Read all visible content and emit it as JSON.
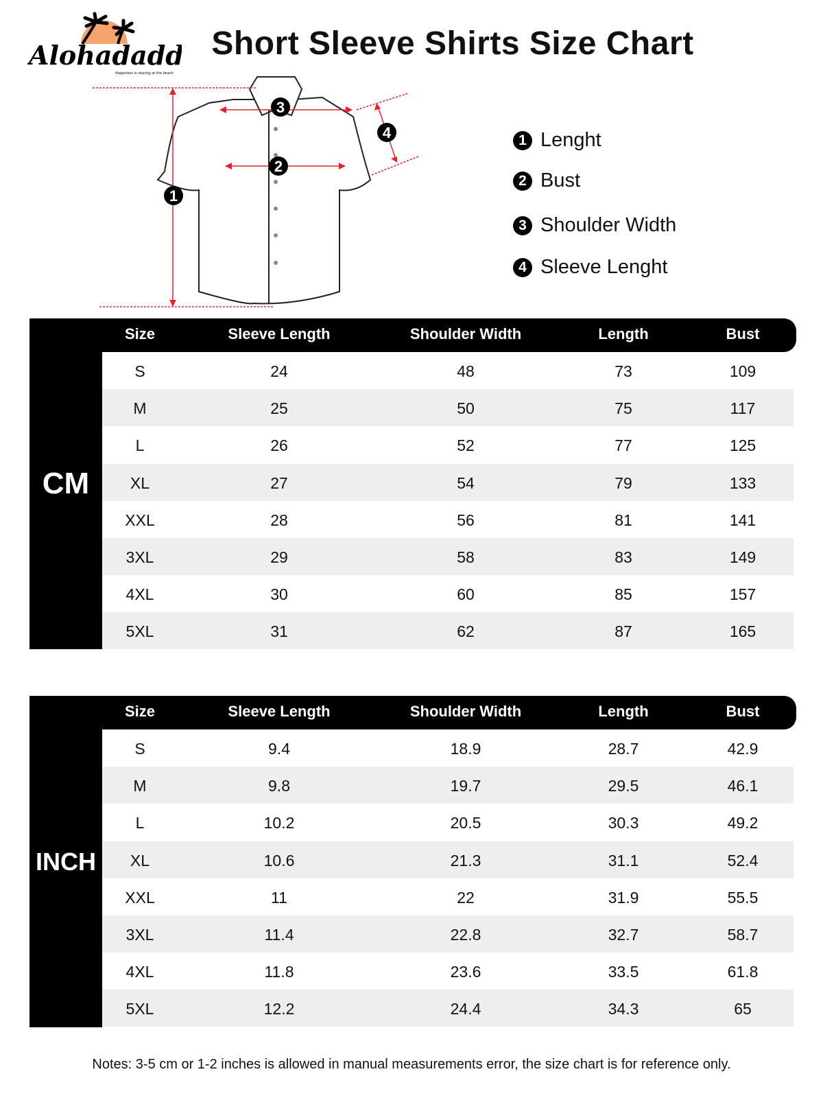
{
  "brand": {
    "name": "Alohadaddy",
    "tagline": "Happiness is staying at the beach",
    "sun_color": "#f4a46c"
  },
  "title": "Short Sleeve Shirts Size Chart",
  "diagram": {
    "markers": [
      "1",
      "2",
      "3",
      "4"
    ],
    "arrow_color": "#e8202a"
  },
  "legend": [
    {
      "num": "1",
      "label": "Lenght"
    },
    {
      "num": "2",
      "label": "Bust"
    },
    {
      "num": "3",
      "label": "Shoulder Width"
    },
    {
      "num": "4",
      "label": "Sleeve Lenght"
    }
  ],
  "columns": [
    "Size",
    "Sleeve Length",
    "Shoulder Width",
    "Length",
    "Bust"
  ],
  "tables": [
    {
      "unit": "CM",
      "rows": [
        [
          "S",
          "24",
          "48",
          "73",
          "109"
        ],
        [
          "M",
          "25",
          "50",
          "75",
          "117"
        ],
        [
          "L",
          "26",
          "52",
          "77",
          "125"
        ],
        [
          "XL",
          "27",
          "54",
          "79",
          "133"
        ],
        [
          "XXL",
          "28",
          "56",
          "81",
          "141"
        ],
        [
          "3XL",
          "29",
          "58",
          "83",
          "149"
        ],
        [
          "4XL",
          "30",
          "60",
          "85",
          "157"
        ],
        [
          "5XL",
          "31",
          "62",
          "87",
          "165"
        ]
      ]
    },
    {
      "unit": "INCH",
      "rows": [
        [
          "S",
          "9.4",
          "18.9",
          "28.7",
          "42.9"
        ],
        [
          "M",
          "9.8",
          "19.7",
          "29.5",
          "46.1"
        ],
        [
          "L",
          "10.2",
          "20.5",
          "30.3",
          "49.2"
        ],
        [
          "XL",
          "10.6",
          "21.3",
          "31.1",
          "52.4"
        ],
        [
          "XXL",
          "11",
          "22",
          "31.9",
          "55.5"
        ],
        [
          "3XL",
          "11.4",
          "22.8",
          "32.7",
          "58.7"
        ],
        [
          "4XL",
          "11.8",
          "23.6",
          "33.5",
          "61.8"
        ],
        [
          "5XL",
          "12.2",
          "24.4",
          "34.3",
          "65"
        ]
      ]
    }
  ],
  "notes": "Notes: 3-5 cm or 1-2 inches is allowed in manual measurements error, the size chart is for reference only."
}
